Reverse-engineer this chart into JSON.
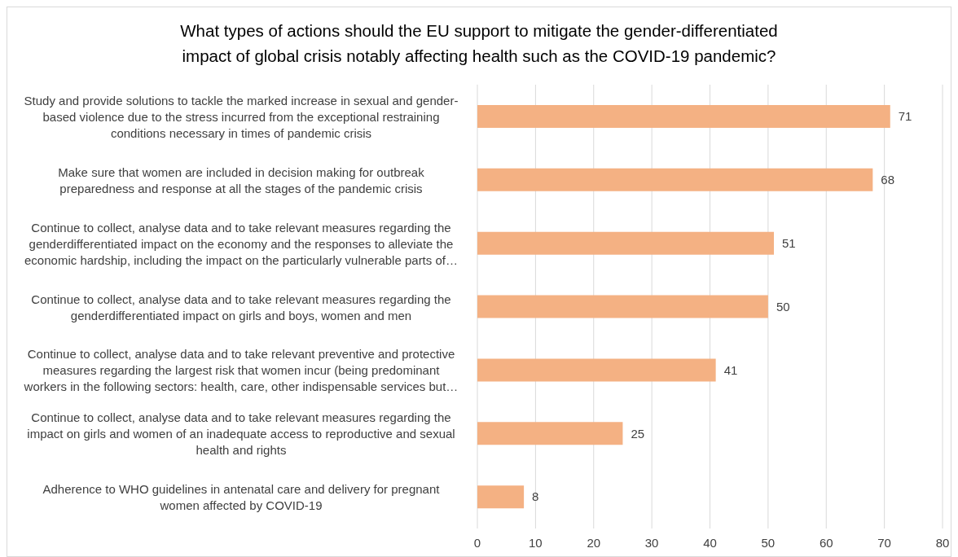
{
  "chart_data": {
    "type": "bar",
    "orientation": "horizontal",
    "title": "What types of actions should the EU support to mitigate the gender-differentiated impact of global crisis notably affecting health such as the COVID-19 pandemic?",
    "categories": [
      "Study and provide solutions to tackle the marked increase in sexual and gender-based violence due to the stress incurred from the exceptional restraining conditions necessary in times of pandemic crisis",
      "Make sure that women are included in decision making for outbreak preparedness and response at all the stages of the pandemic crisis",
      "Continue to collect, analyse data and to take relevant measures regarding the genderdifferentiated impact on the economy and the responses to alleviate the economic hardship, including the impact on the particularly vulnerable parts of…",
      "Continue to collect, analyse data and to take relevant measures regarding the genderdifferentiated impact on girls and boys, women and men",
      "Continue to collect, analyse data and to take relevant preventive and protective measures regarding the largest risk that women incur (being predominant workers in the following sectors: health, care, other indispensable services but…",
      "Continue to collect, analyse data and to take relevant measures regarding the impact on girls and women of an inadequate access to reproductive and sexual health and rights",
      "Adherence to WHO guidelines in antenatal care and delivery for pregnant women affected by COVID-19"
    ],
    "values": [
      71,
      68,
      51,
      50,
      41,
      25,
      8
    ],
    "color": "#f4b183",
    "xlim": [
      0,
      80
    ],
    "xticks": [
      0,
      10,
      20,
      30,
      40,
      50,
      60,
      70,
      80
    ],
    "grid": "x",
    "data_labels": true
  }
}
